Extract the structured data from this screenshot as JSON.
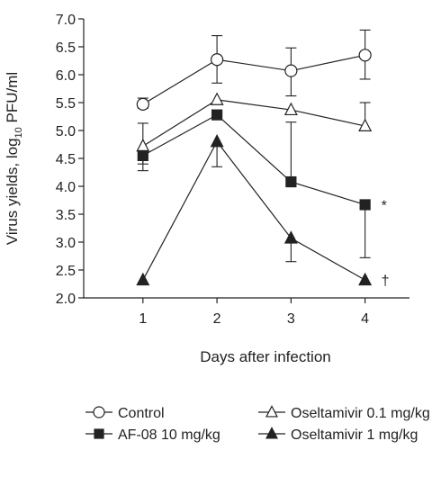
{
  "chart_data": {
    "type": "line",
    "xlabel": "Days after infection",
    "ylabel": {
      "prefix": "Virus yields, log",
      "subscript": "10",
      "suffix": " PFU/ml"
    },
    "x": [
      1,
      2,
      3,
      4
    ],
    "xlim": [
      0.2,
      4.6
    ],
    "ylim": [
      2.0,
      7.0
    ],
    "yticks": [
      2.0,
      2.5,
      3.0,
      3.5,
      4.0,
      4.5,
      5.0,
      5.5,
      6.0,
      6.5,
      7.0
    ],
    "xticks": [
      1,
      2,
      3,
      4
    ],
    "grid": false,
    "legend_position": "bottom",
    "series": [
      {
        "name": "Control",
        "marker": "circle-open",
        "values": [
          5.47,
          6.27,
          6.07,
          6.35
        ],
        "err_low": [
          5.4,
          5.85,
          5.62,
          5.92
        ],
        "err_high": [
          5.58,
          6.7,
          6.48,
          6.8
        ]
      },
      {
        "name": "Oseltamivir 0.1 mg/kg",
        "marker": "triangle-open",
        "values": [
          4.72,
          5.55,
          5.37,
          5.08
        ],
        "err_low": [
          4.4,
          5.55,
          5.37,
          5.08
        ],
        "err_high": [
          5.13,
          5.55,
          5.37,
          5.5
        ]
      },
      {
        "name": "AF-08 10 mg/kg",
        "marker": "square-filled",
        "values": [
          4.55,
          5.28,
          4.08,
          3.67
        ],
        "err_low": [
          4.28,
          5.28,
          4.08,
          2.72
        ],
        "err_high": [
          4.55,
          5.28,
          5.15,
          3.67
        ]
      },
      {
        "name": "Oseltamivir 1 mg/kg",
        "marker": "triangle-filled",
        "values": [
          2.32,
          4.8,
          3.07,
          2.32
        ],
        "err_low": [
          2.32,
          4.35,
          2.65,
          2.32
        ],
        "err_high": [
          2.32,
          4.8,
          3.07,
          2.32
        ]
      }
    ],
    "annotations": [
      {
        "text": "*",
        "x": 4,
        "y": 3.67
      },
      {
        "text": "†",
        "x": 4,
        "y": 2.32
      }
    ]
  },
  "legend": {
    "items": [
      {
        "label": "Control",
        "marker": "circle-open"
      },
      {
        "label": "Oseltamivir 0.1 mg/kg",
        "marker": "triangle-open"
      },
      {
        "label": "AF-08 10 mg/kg",
        "marker": "square-filled"
      },
      {
        "label": "Oseltamivir 1 mg/kg",
        "marker": "triangle-filled"
      }
    ]
  },
  "colors": {
    "ink": "#222222",
    "background": "#ffffff"
  }
}
